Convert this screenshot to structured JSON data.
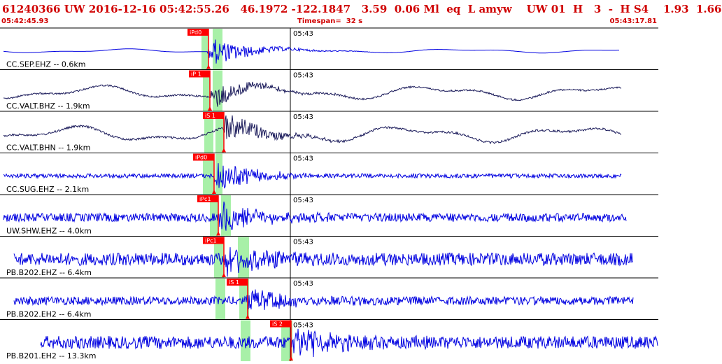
{
  "header": {
    "title": "61240366 UW 2016-12-16 05:42:55.26   46.1972 -122.1847   3.59  0.06 Ml  eq  L amyw    UW 01  H   3  -  H S4    1.93  1.66",
    "start_time": "05:42:45.93",
    "timespan": "Timespan=  32 s",
    "end_time": "05:43:17.81"
  },
  "colors": {
    "header_text": "#d00000",
    "trace_blue": "#0000e0",
    "trace_dark": "#1a1a5a",
    "pick_flag": "#ff0000",
    "window_green": "#a8f0a8",
    "gridline": "#000000"
  },
  "traces": [
    {
      "label": "CC.SEP.EHZ -- 0.6km",
      "tick": "05:43",
      "pick": "iPd0",
      "color": "blue",
      "amp": 2.0,
      "noise": 0.0,
      "burst": 22,
      "win": [
        [
          288,
          298
        ],
        [
          304,
          318
        ]
      ],
      "marker": 298,
      "end": 885
    },
    {
      "label": "CC.VALT.BHZ -- 1.9km",
      "tick": "05:43",
      "pick": "iP 1",
      "color": "dark",
      "amp": 7,
      "noise": 1.2,
      "burst": 20,
      "win": [
        [
          290,
          300
        ],
        [
          304,
          318
        ]
      ],
      "marker": 300,
      "end": 888
    },
    {
      "label": "CC.VALT.BHN -- 1.9km",
      "tick": "05:43",
      "pick": "iS 1",
      "color": "dark",
      "amp": 8,
      "noise": 1.5,
      "burst": 22,
      "win": [
        [
          292,
          305
        ],
        [
          308,
          320
        ]
      ],
      "marker": 320,
      "end": 888
    },
    {
      "label": "CC.SUG.EHZ -- 2.1km",
      "tick": "05:43",
      "pick": "iPd0",
      "color": "blue",
      "amp": 0,
      "noise": 3,
      "burst": 24,
      "win": [
        [
          290,
          306
        ],
        [
          308,
          318
        ]
      ],
      "marker": 306,
      "end": 888
    },
    {
      "label": "UW.SHW.EHZ -- 4.0km",
      "tick": "05:43",
      "pick": "iPc1",
      "color": "blue",
      "amp": 0,
      "noise": 6,
      "burst": 27,
      "win": [
        [
          300,
          312
        ],
        [
          316,
          330
        ]
      ],
      "marker": 312,
      "end": 895
    },
    {
      "label": "PB.B202.EHZ -- 6.4km",
      "tick": "05:43",
      "pick": "iPc1",
      "color": "blue",
      "amp": 0,
      "noise": 9,
      "burst": 25,
      "win": [
        [
          306,
          320
        ],
        [
          340,
          356
        ]
      ],
      "marker": 320,
      "end": 905
    },
    {
      "label": "PB.B202.EH2 -- 6.4km",
      "tick": "05:43",
      "pick": "iS 1",
      "color": "blue",
      "amp": 0,
      "noise": 6,
      "burst": 20,
      "win": [
        [
          308,
          322
        ],
        [
          342,
          356
        ]
      ],
      "marker": 354,
      "end": 905
    },
    {
      "label": "PB.B201.EH2 -- 13.3km",
      "tick": "05:43",
      "pick": "iS 2",
      "color": "blue",
      "amp": 0,
      "noise": 9,
      "burst": 25,
      "win": [
        [
          344,
          358
        ],
        [
          402,
          418
        ]
      ],
      "marker": 416,
      "end": 940
    }
  ]
}
